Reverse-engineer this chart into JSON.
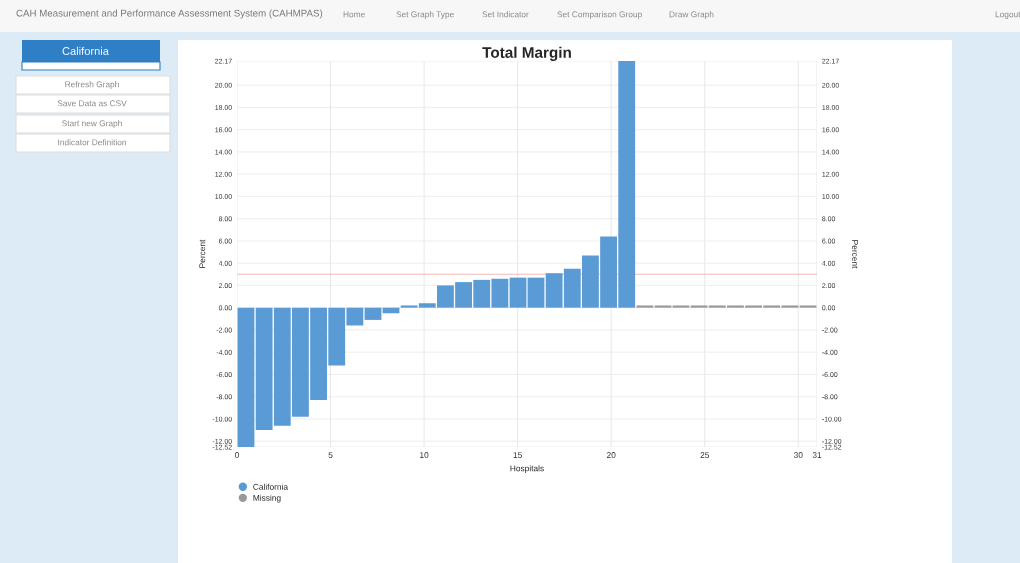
{
  "chart_data": {
    "type": "bar",
    "title": "Total Margin",
    "xlabel": "Hospitals",
    "ylabel": "Percent",
    "y2label": "Percent",
    "series": [
      {
        "name": "California",
        "color": "#5b9bd5",
        "x": [
          0.48,
          1.45,
          2.42,
          3.39,
          4.36,
          5.33,
          6.3,
          7.27,
          8.23,
          9.2,
          10.17,
          11.14,
          12.11,
          13.08,
          14.05,
          15.02,
          15.98,
          16.95,
          17.92,
          18.89,
          19.86,
          20.83
        ],
        "values": [
          -12.52,
          -11.0,
          -10.6,
          -9.8,
          -8.3,
          -5.2,
          -1.6,
          -1.1,
          -0.5,
          0.2,
          0.4,
          2.0,
          2.3,
          2.5,
          2.6,
          2.7,
          2.7,
          3.1,
          3.5,
          4.7,
          6.4,
          22.17
        ]
      },
      {
        "name": "Missing",
        "color": "#999999",
        "x": [
          21.8,
          22.77,
          23.73,
          24.7,
          25.67,
          26.64,
          27.61,
          28.58,
          29.55,
          30.52
        ],
        "values": [
          0.2,
          0.2,
          0.2,
          0.2,
          0.2,
          0.2,
          0.2,
          0.2,
          0.2,
          0.2
        ]
      }
    ],
    "xlim": [
      0,
      31
    ],
    "xticks": [
      0,
      5,
      10,
      15,
      20,
      25,
      30,
      31
    ],
    "ylim": [
      -12.52,
      22.17
    ],
    "yticks": [
      {
        "value": -12.52,
        "label": "-12.52"
      },
      {
        "value": -12,
        "label": "-12.00"
      },
      {
        "value": -10,
        "label": "-10.00"
      },
      {
        "value": -8,
        "label": "-8.00"
      },
      {
        "value": -6,
        "label": "-6.00"
      },
      {
        "value": -4,
        "label": "-4.00"
      },
      {
        "value": -2,
        "label": "-2.00"
      },
      {
        "value": 0,
        "label": "0.00"
      },
      {
        "value": 2,
        "label": "2.00"
      },
      {
        "value": 4,
        "label": "4.00"
      },
      {
        "value": 6,
        "label": "6.00"
      },
      {
        "value": 8,
        "label": "8.00"
      },
      {
        "value": 10,
        "label": "10.00"
      },
      {
        "value": 12,
        "label": "12.00"
      },
      {
        "value": 14,
        "label": "14.00"
      },
      {
        "value": 16,
        "label": "16.00"
      },
      {
        "value": 18,
        "label": "18.00"
      },
      {
        "value": 20,
        "label": "20.00"
      },
      {
        "value": 22.17,
        "label": "22.17"
      }
    ],
    "y2lim": [
      -12.52,
      22.17
    ],
    "y2ticks": [
      {
        "value": -12.52,
        "label": "-12.52"
      },
      {
        "value": -12,
        "label": "-12.00"
      },
      {
        "value": -10,
        "label": "-10.00"
      },
      {
        "value": -8,
        "label": "-8.00"
      },
      {
        "value": -6,
        "label": "-6.00"
      },
      {
        "value": -4,
        "label": "-4.00"
      },
      {
        "value": -2,
        "label": "-2.00"
      },
      {
        "value": 0,
        "label": "0.00"
      },
      {
        "value": 2,
        "label": "2.00"
      },
      {
        "value": 4,
        "label": "4.00"
      },
      {
        "value": 6,
        "label": "6.00"
      },
      {
        "value": 8,
        "label": "8.00"
      },
      {
        "value": 10,
        "label": "10.00"
      },
      {
        "value": 12,
        "label": "12.00"
      },
      {
        "value": 14,
        "label": "14.00"
      },
      {
        "value": 16,
        "label": "16.00"
      },
      {
        "value": 18,
        "label": "18.00"
      },
      {
        "value": 20,
        "label": "20.00"
      },
      {
        "value": 22.17,
        "label": "22.17"
      }
    ],
    "ref_lines": [
      {
        "axis": "y",
        "value": 3.0,
        "color": "#f2b8b8"
      }
    ],
    "grid": true,
    "legend": "bottom left",
    "marker": "circle",
    "annotations": [
      "CAH Measurement and Performance Assessment System (CAHMPAS)",
      "Home",
      "Set Graph Type",
      "Set Indicator",
      "Set Comparison Group",
      "Draw Graph",
      "Logout",
      "California",
      "Refresh Graph",
      "Save Data as CSV",
      "Start new Graph",
      "Indicator Definition"
    ]
  }
}
